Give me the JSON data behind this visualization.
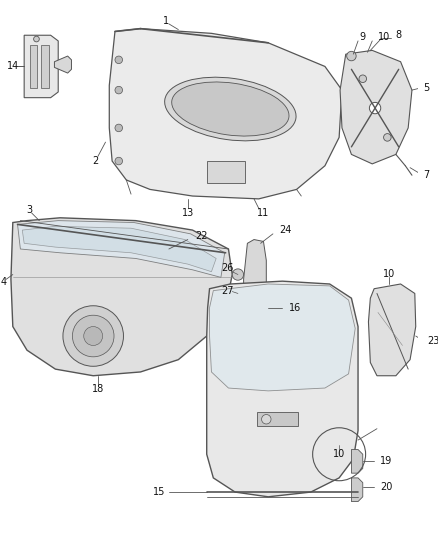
{
  "background_color": "#ffffff",
  "fig_width": 4.38,
  "fig_height": 5.33,
  "dpi": 100,
  "line_color": "#555555",
  "text_color": "#111111",
  "label_fontsize": 7.0
}
